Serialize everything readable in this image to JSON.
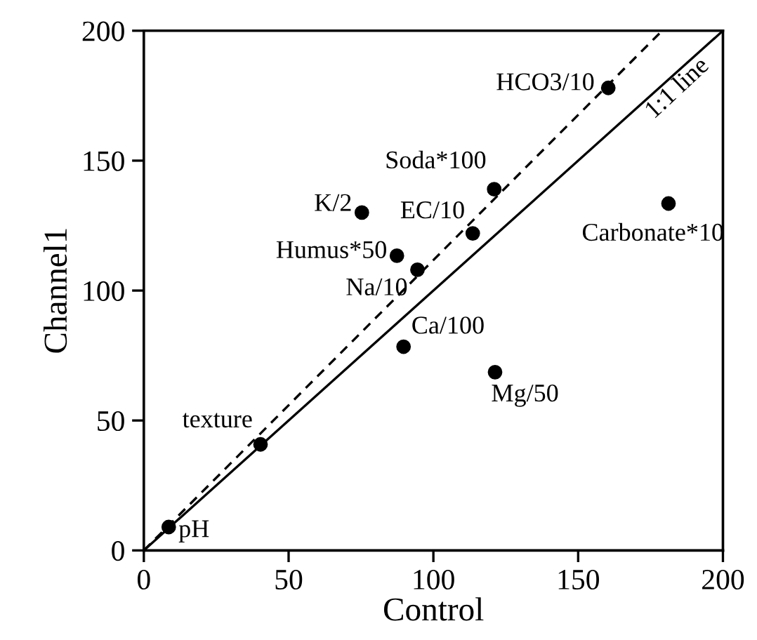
{
  "chart_data": {
    "type": "scatter",
    "xlabel": "Control",
    "ylabel": "Channel1",
    "xlim": [
      0,
      200
    ],
    "ylim": [
      0,
      200
    ],
    "xticks": [
      0,
      50,
      100,
      150,
      200
    ],
    "yticks": [
      0,
      50,
      100,
      150,
      200
    ],
    "grid": false,
    "legend": false,
    "series": [
      {
        "color": "#000000",
        "marker": "circle",
        "x": [
          8.6,
          40.3,
          89.7,
          121.3,
          94.5,
          87.4,
          75.3,
          113.6,
          121,
          160.4,
          181.2
        ],
        "values": [
          9.0,
          40.8,
          78.4,
          68.6,
          108,
          113.4,
          130,
          122,
          139,
          178,
          133.5
        ]
      },
      {
        "type": "line",
        "color": "#000000",
        "line_style": "solid",
        "x": [
          0,
          200
        ],
        "values": [
          0,
          200
        ]
      },
      {
        "type": "line",
        "color": "#000000",
        "line_style": "dashed",
        "x": [
          0,
          179
        ],
        "values": [
          0,
          200
        ]
      }
    ],
    "annotations": [
      {
        "text": "pH",
        "x": 8.6,
        "y": 9.0
      },
      {
        "text": "texture",
        "x": 40.3,
        "y": 40.8
      },
      {
        "text": "Ca/100",
        "x": 89.7,
        "y": 78.4
      },
      {
        "text": "Mg/50",
        "x": 121.3,
        "y": 68.6
      },
      {
        "text": "Na/10",
        "x": 94.5,
        "y": 108
      },
      {
        "text": "Humus*50",
        "x": 87.4,
        "y": 113.4
      },
      {
        "text": "K/2",
        "x": 75.3,
        "y": 130
      },
      {
        "text": "EC/10",
        "x": 113.6,
        "y": 122
      },
      {
        "text": "Soda*100",
        "x": 121,
        "y": 139
      },
      {
        "text": "HCO3/10",
        "x": 160.4,
        "y": 178
      },
      {
        "text": "Carbonate*10",
        "x": 181.2,
        "y": 133.5
      },
      {
        "text": "1:1 line",
        "x": 172,
        "y": 172
      }
    ]
  }
}
